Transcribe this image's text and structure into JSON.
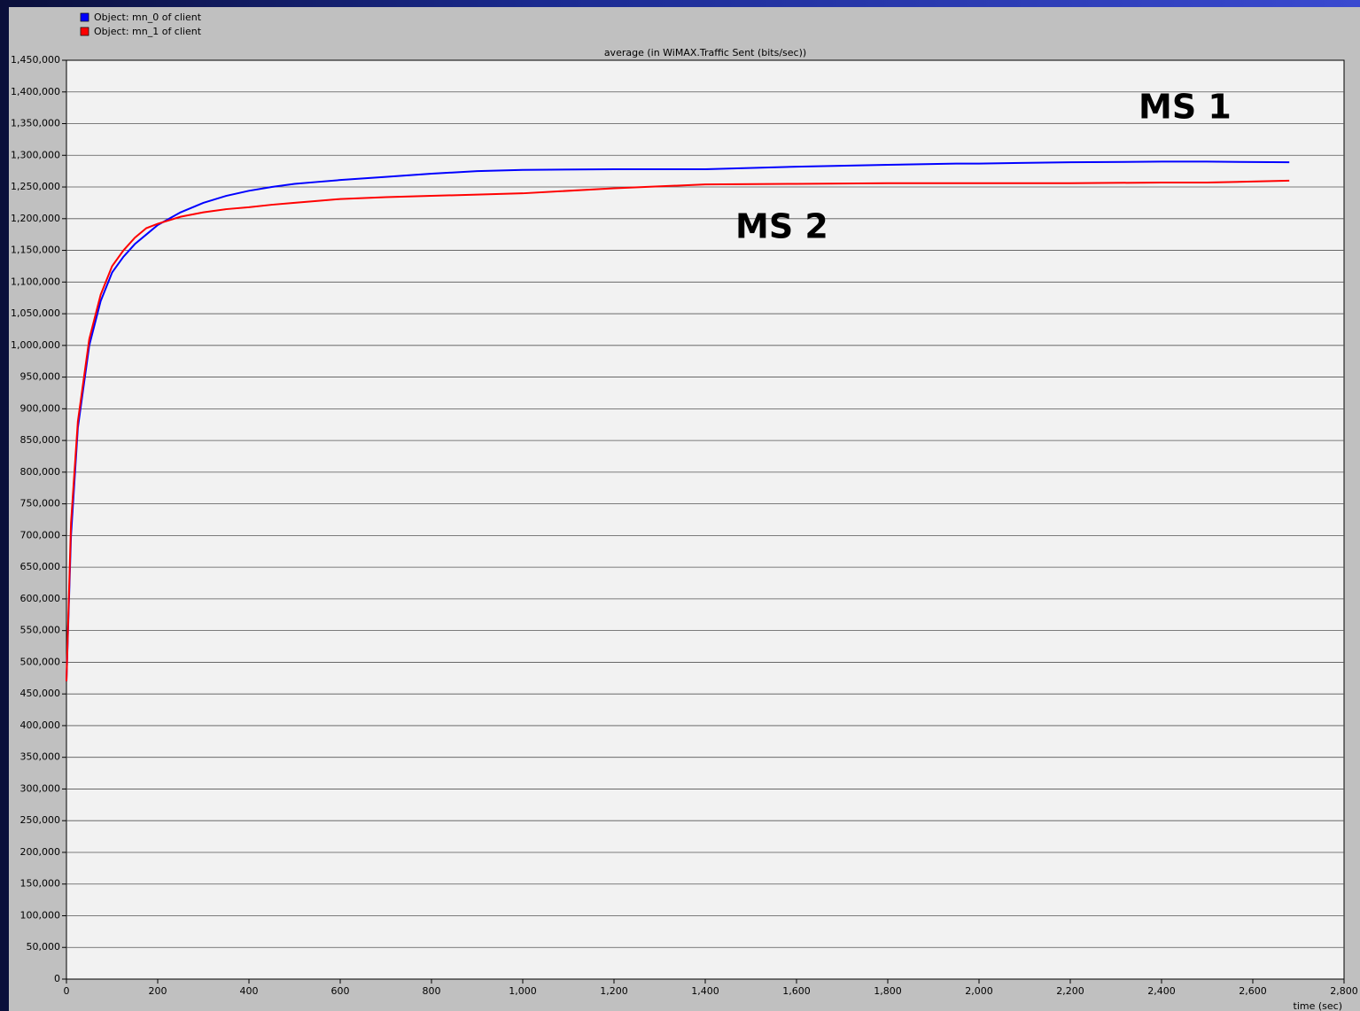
{
  "chart_data": {
    "type": "line",
    "title": "average (in WiMAX.Traffic Sent (bits/sec))",
    "x_label": "time (sec)",
    "annotations": [
      "MS 1",
      "MS 2"
    ],
    "x": [
      0,
      10,
      25,
      50,
      75,
      100,
      125,
      150,
      175,
      200,
      250,
      300,
      350,
      400,
      450,
      500,
      550,
      600,
      700,
      800,
      900,
      1000,
      1200,
      1400,
      1600,
      1800,
      1950,
      2000,
      2200,
      2400,
      2500,
      2680
    ],
    "series": [
      {
        "name": "Object: mn_0 of client",
        "color": "#0000ff",
        "values": [
          470000,
          700000,
          870000,
          1000000,
          1070000,
          1115000,
          1140000,
          1160000,
          1175000,
          1190000,
          1210000,
          1225000,
          1236000,
          1244000,
          1250000,
          1255000,
          1258000,
          1261000,
          1266000,
          1271000,
          1275000,
          1277000,
          1278000,
          1278000,
          1282000,
          1285000,
          1287000,
          1287000,
          1289000,
          1290000,
          1290000,
          1289000
        ]
      },
      {
        "name": "Object: mn_1 of client",
        "color": "#ff0000",
        "values": [
          470000,
          720000,
          880000,
          1010000,
          1080000,
          1125000,
          1150000,
          1170000,
          1185000,
          1192000,
          1203000,
          1210000,
          1215000,
          1218000,
          1222000,
          1225000,
          1228000,
          1231000,
          1234000,
          1236000,
          1238000,
          1240000,
          1248000,
          1254000,
          1255000,
          1256000,
          1256000,
          1256000,
          1256000,
          1257000,
          1257000,
          1260000
        ]
      }
    ],
    "xlim": [
      0,
      2800
    ],
    "xticks": [
      0,
      200,
      400,
      600,
      800,
      {
        "value": 1000,
        "label": "1,000"
      },
      {
        "value": 1200,
        "label": "1,200"
      },
      {
        "value": 1400,
        "label": "1,400"
      },
      {
        "value": 1600,
        "label": "1,600"
      },
      {
        "value": 1800,
        "label": "1,800"
      },
      {
        "value": 2000,
        "label": "2,000"
      },
      {
        "value": 2200,
        "label": "2,200"
      },
      {
        "value": 2400,
        "label": "2,400"
      },
      {
        "value": 2600,
        "label": "2,600"
      },
      {
        "value": 2800,
        "label": "2,800"
      }
    ],
    "ylim": [
      0,
      1450000
    ],
    "yticks": [
      0,
      {
        "value": 50000,
        "label": "50,000"
      },
      {
        "value": 100000,
        "label": "100,000"
      },
      {
        "value": 150000,
        "label": "150,000"
      },
      {
        "value": 200000,
        "label": "200,000"
      },
      {
        "value": 250000,
        "label": "250,000"
      },
      {
        "value": 300000,
        "label": "300,000"
      },
      {
        "value": 350000,
        "label": "350,000"
      },
      {
        "value": 400000,
        "label": "400,000"
      },
      {
        "value": 450000,
        "label": "450,000"
      },
      {
        "value": 500000,
        "label": "500,000"
      },
      {
        "value": 550000,
        "label": "550,000"
      },
      {
        "value": 600000,
        "label": "600,000"
      },
      {
        "value": 650000,
        "label": "650,000"
      },
      {
        "value": 700000,
        "label": "700,000"
      },
      {
        "value": 750000,
        "label": "750,000"
      },
      {
        "value": 800000,
        "label": "800,000"
      },
      {
        "value": 850000,
        "label": "850,000"
      },
      {
        "value": 900000,
        "label": "900,000"
      },
      {
        "value": 950000,
        "label": "950,000"
      },
      {
        "value": 1000000,
        "label": "1,000,000"
      },
      {
        "value": 1050000,
        "label": "1,050,000"
      },
      {
        "value": 1100000,
        "label": "1,100,000"
      },
      {
        "value": 1150000,
        "label": "1,150,000"
      },
      {
        "value": 1200000,
        "label": "1,200,000"
      },
      {
        "value": 1250000,
        "label": "1,250,000"
      },
      {
        "value": 1300000,
        "label": "1,300,000"
      },
      {
        "value": 1350000,
        "label": "1,350,000"
      },
      {
        "value": 1400000,
        "label": "1,400,000"
      },
      {
        "value": 1450000,
        "label": "1,450,000"
      }
    ],
    "grid": true
  }
}
